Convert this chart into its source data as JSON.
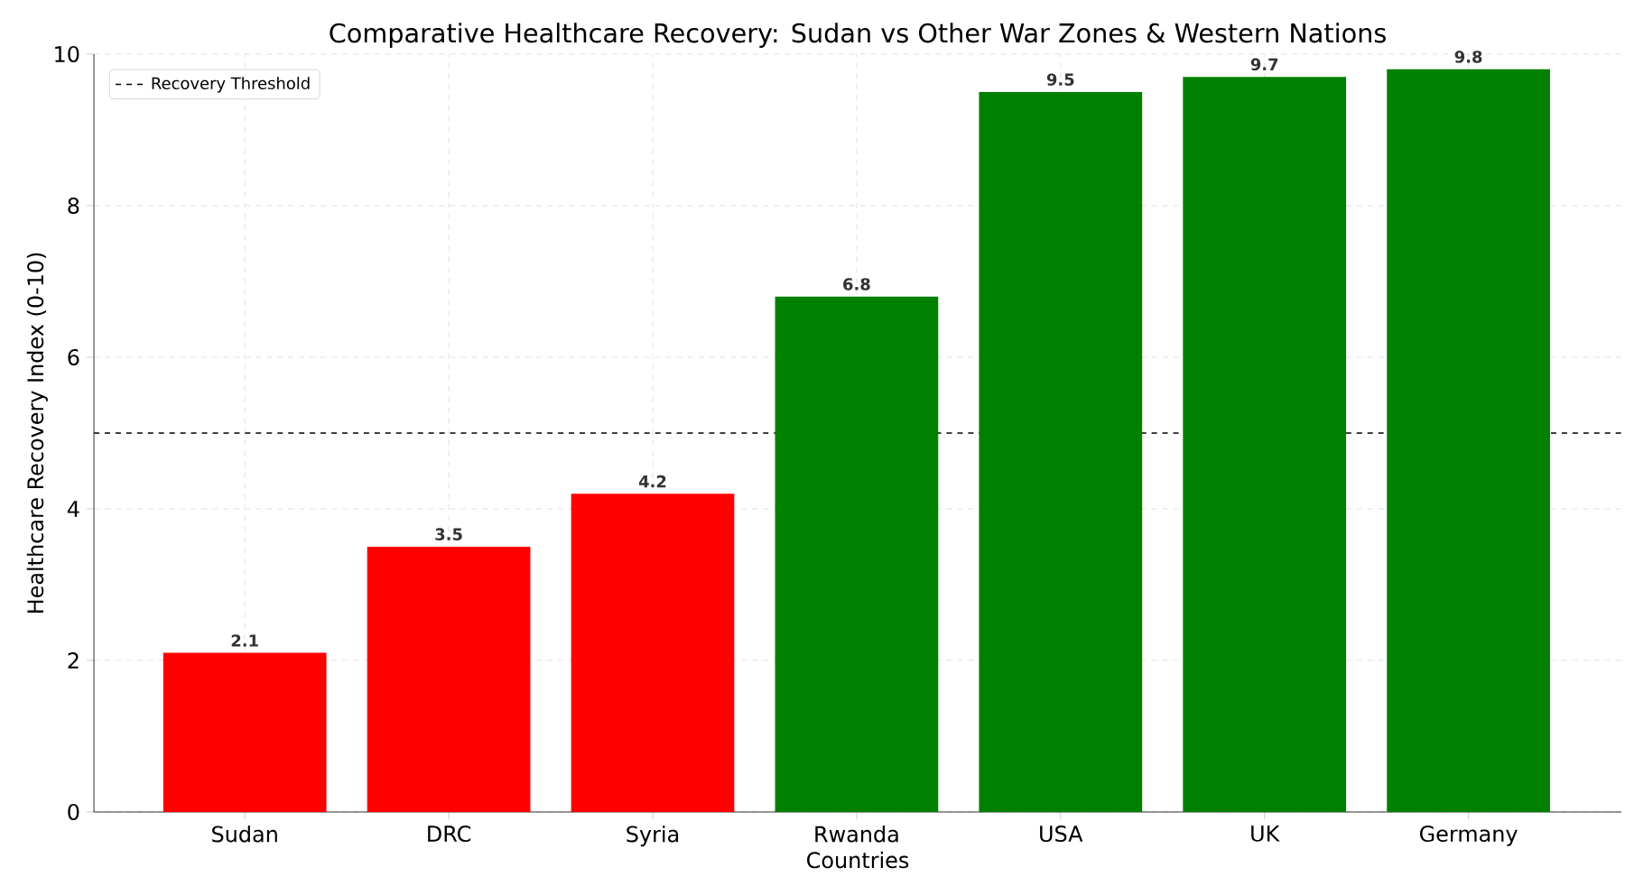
{
  "chart_data": {
    "type": "bar",
    "title": "Comparative Healthcare Recovery: Sudan vs Other War Zones & Western Nations",
    "xlabel": "Countries",
    "ylabel": "Healthcare Recovery Index (0-10)",
    "categories": [
      "Sudan",
      "DRC",
      "Syria",
      "Rwanda",
      "USA",
      "UK",
      "Germany"
    ],
    "values": [
      2.1,
      3.5,
      4.2,
      6.8,
      9.5,
      9.7,
      9.8
    ],
    "colors": [
      "#ff0000",
      "#ff0000",
      "#ff0000",
      "#008000",
      "#008000",
      "#008000",
      "#008000"
    ],
    "ylim": [
      0,
      10
    ],
    "yticks": [
      0,
      2,
      4,
      6,
      8,
      10
    ],
    "grid": true,
    "legend": "top left",
    "data_labels": true,
    "ref_lines": [
      {
        "axis": "y",
        "value": 5,
        "label": "Recovery Threshold",
        "color": "#000000",
        "line_style": "dashed"
      }
    ]
  }
}
